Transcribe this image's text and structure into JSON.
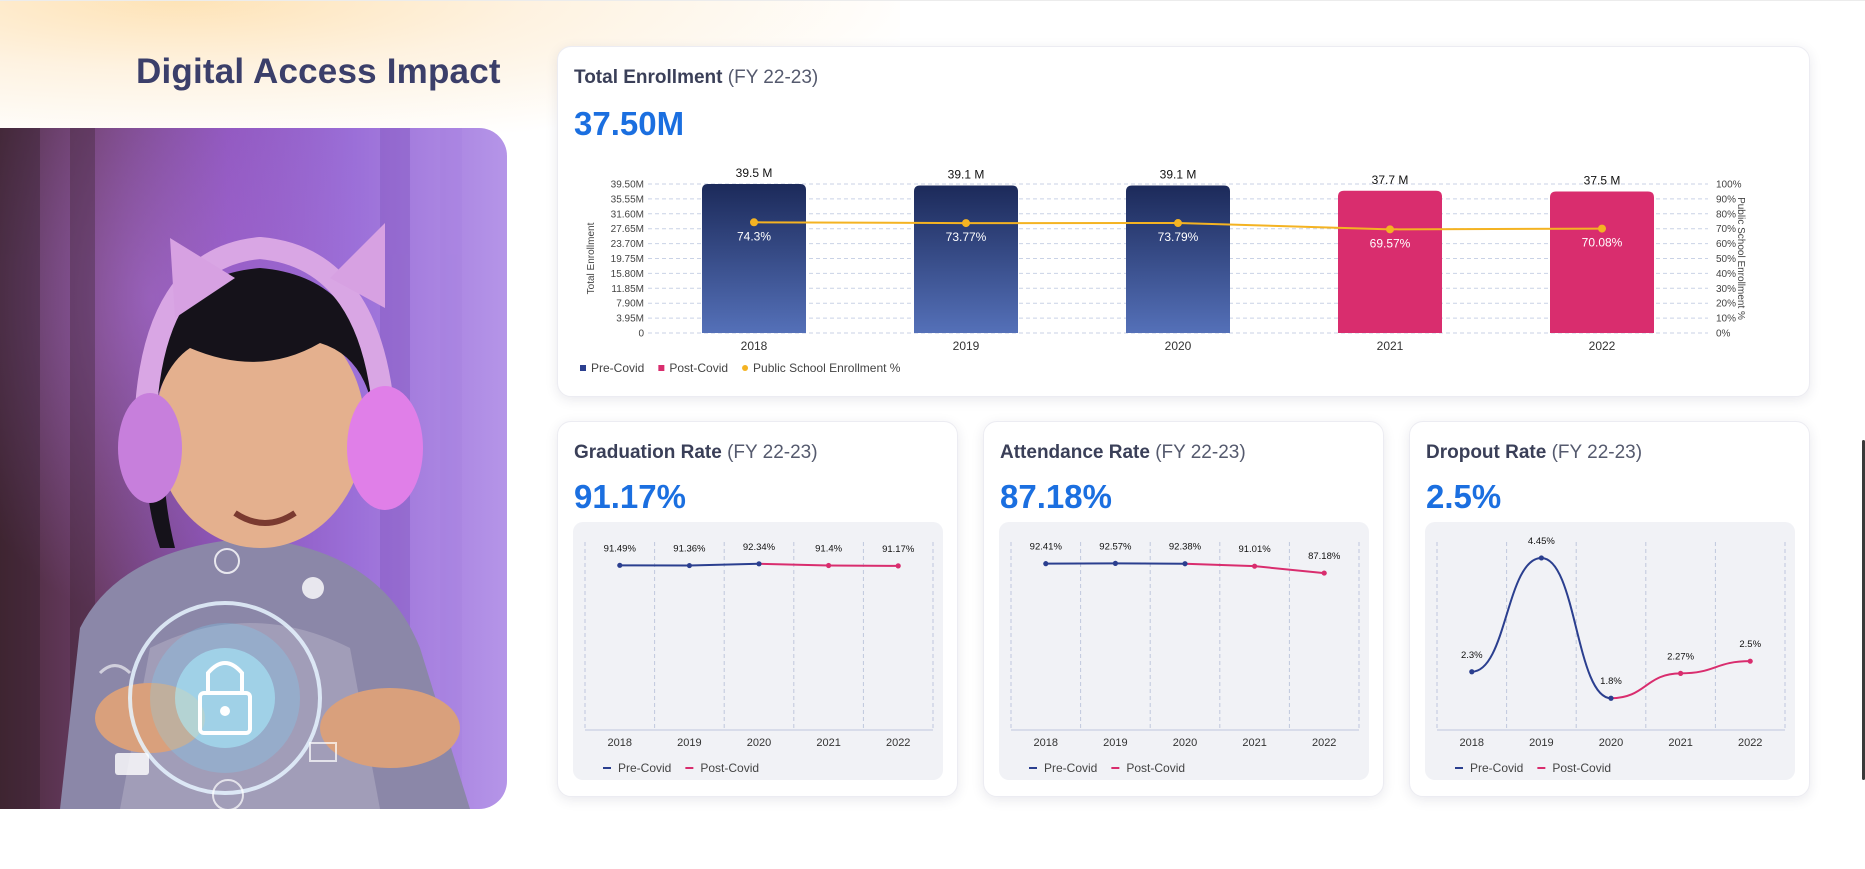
{
  "page": {
    "title": "Digital Access Impact"
  },
  "hero": {
    "description": ""
  },
  "colors": {
    "pre": "#2b3f8f",
    "post": "#d92d6e",
    "line": "#f4b322",
    "value": "#1b6fe0"
  },
  "enrollment": {
    "title": "Total Enrollment",
    "subtitle": "(FY 22-23)",
    "value": "37.50M"
  },
  "graduation": {
    "title": "Graduation Rate",
    "subtitle": "(FY 22-23)",
    "value": "91.17%"
  },
  "attendance": {
    "title": "Attendance Rate",
    "subtitle": "(FY 22-23)",
    "value": "87.18%"
  },
  "dropout": {
    "title": "Dropout Rate",
    "subtitle": "(FY 22-23)",
    "value": "2.5%"
  },
  "chart_data": [
    {
      "type": "bar",
      "categories": [
        "2018",
        "2019",
        "2020",
        "2021",
        "2022"
      ],
      "series": [
        {
          "name": "Total Enrollment",
          "values": [
            39.5,
            39.1,
            39.1,
            37.7,
            37.5
          ],
          "labels": [
            "39.5 M",
            "39.1 M",
            "39.1 M",
            "37.7 M",
            "37.5 M"
          ],
          "group": [
            "Pre-Covid",
            "Pre-Covid",
            "Pre-Covid",
            "Post-Covid",
            "Post-Covid"
          ]
        },
        {
          "name": "Public School Enrollment %",
          "type": "line",
          "values": [
            74.3,
            73.77,
            73.79,
            69.57,
            70.08
          ],
          "labels": [
            "74.3%",
            "73.77%",
            "73.79%",
            "69.57%",
            "70.08%"
          ]
        }
      ],
      "ylabel": "Total Enrollment",
      "y2label": "Public School Enrollment %",
      "yticks": [
        "0",
        "3.95M",
        "7.90M",
        "11.85M",
        "15.80M",
        "19.75M",
        "23.70M",
        "27.65M",
        "31.60M",
        "35.55M",
        "39.50M"
      ],
      "y2ticks": [
        "0%",
        "10%",
        "20%",
        "30%",
        "40%",
        "50%",
        "60%",
        "70%",
        "80%",
        "90%",
        "100%"
      ],
      "ylim": [
        0,
        39.5
      ],
      "y2lim": [
        0,
        100
      ],
      "legend": [
        "Pre-Covid",
        "Post-Covid",
        "Public School Enrollment %"
      ],
      "legend_position": "bottom-left",
      "grid": true
    },
    {
      "type": "line",
      "categories": [
        "2018",
        "2019",
        "2020",
        "2021",
        "2022"
      ],
      "values": [
        91.49,
        91.36,
        92.34,
        91.4,
        91.17
      ],
      "labels": [
        "91.49%",
        "91.36%",
        "92.34%",
        "91.4%",
        "91.17%"
      ],
      "split_index": 2,
      "ylim": [
        0,
        100
      ],
      "legend": [
        "Pre-Covid",
        "Post-Covid"
      ],
      "legend_position": "bottom"
    },
    {
      "type": "line",
      "categories": [
        "2018",
        "2019",
        "2020",
        "2021",
        "2022"
      ],
      "values": [
        92.41,
        92.57,
        92.38,
        91.01,
        87.18
      ],
      "labels": [
        "92.41%",
        "92.57%",
        "92.38%",
        "91.01%",
        "87.18%"
      ],
      "split_index": 2,
      "ylim": [
        0,
        100
      ],
      "legend": [
        "Pre-Covid",
        "Post-Covid"
      ],
      "legend_position": "bottom"
    },
    {
      "type": "line",
      "categories": [
        "2018",
        "2019",
        "2020",
        "2021",
        "2022"
      ],
      "values": [
        2.3,
        4.45,
        1.8,
        2.27,
        2.5
      ],
      "labels": [
        "2.3%",
        "4.45%",
        "1.8%",
        "2.27%",
        "2.5%"
      ],
      "split_index": 2,
      "ylim": [
        1.2,
        4.6
      ],
      "legend": [
        "Pre-Covid",
        "Post-Covid"
      ],
      "legend_position": "bottom"
    }
  ]
}
